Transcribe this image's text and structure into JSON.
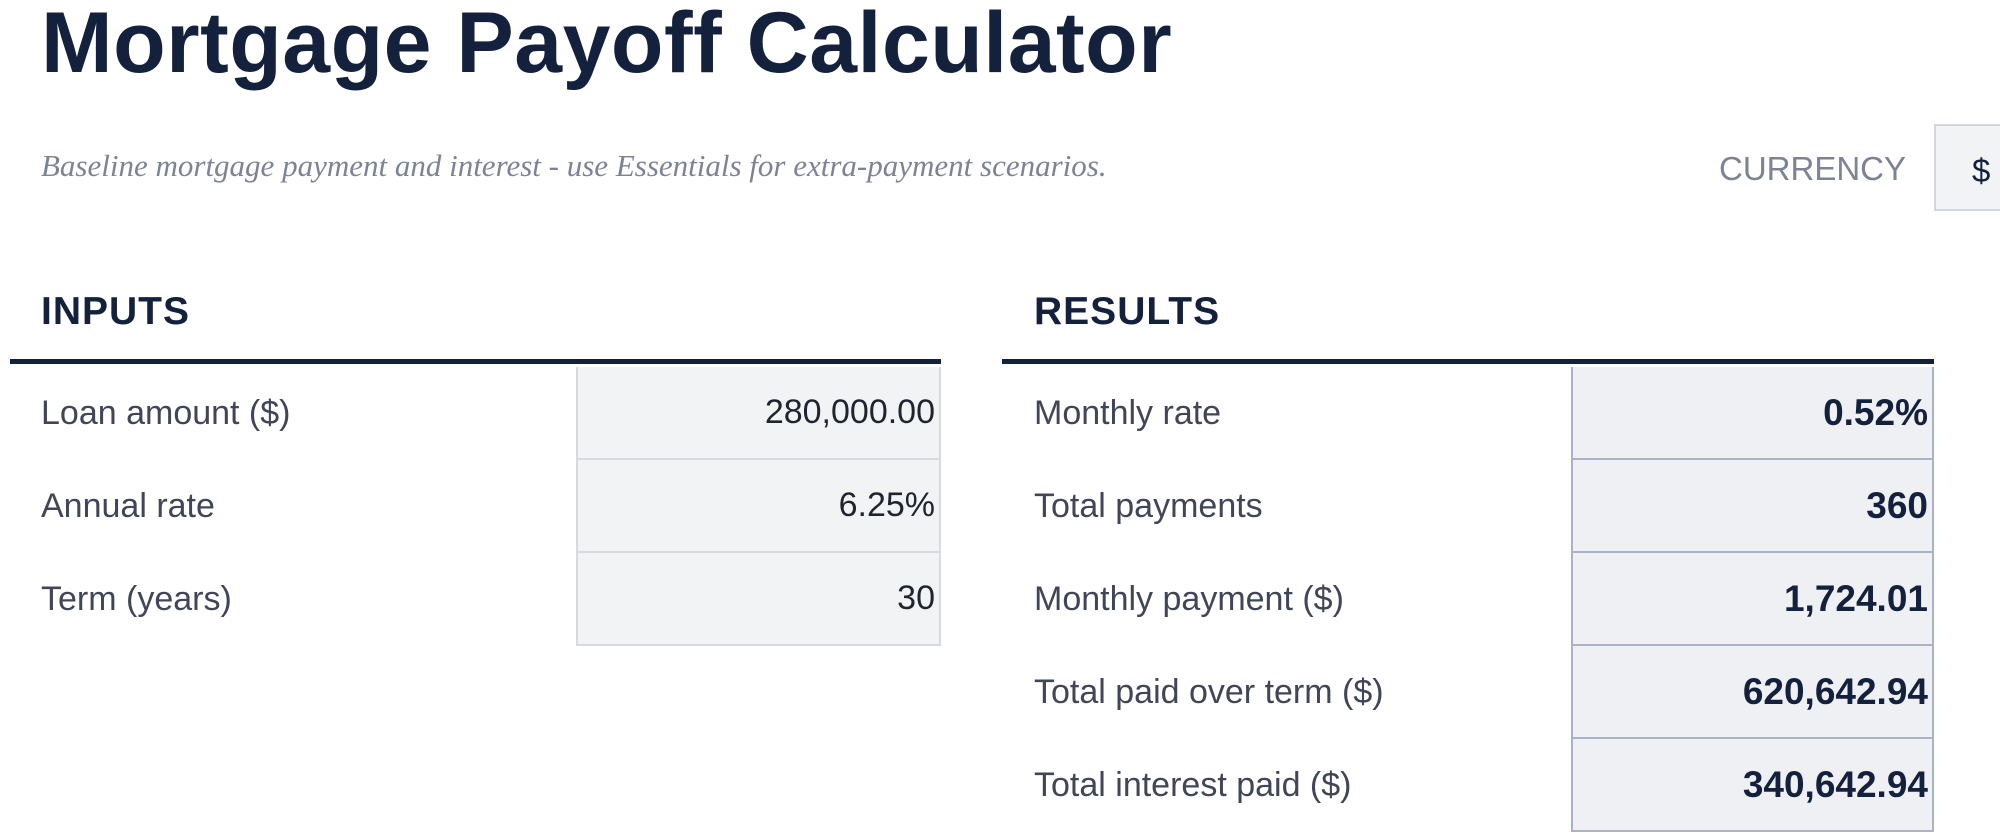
{
  "header": {
    "title": "Mortgage Payoff Calculator",
    "subtitle": "Baseline mortgage payment and interest - use Essentials for extra-payment scenarios.",
    "currency_label": "CURRENCY",
    "currency_value": "$"
  },
  "inputs": {
    "title": "INPUTS",
    "rows": [
      [
        "Loan amount ($)",
        "280,000.00"
      ],
      [
        "Annual rate",
        "6.25%"
      ],
      [
        "Term (years)",
        "30"
      ]
    ]
  },
  "results": {
    "title": "RESULTS",
    "rows": [
      [
        "Monthly rate",
        "0.52%"
      ],
      [
        "Total payments",
        "360"
      ],
      [
        "Monthly payment ($)",
        "1,724.01"
      ],
      [
        "Total paid over term ($)",
        "620,642.94"
      ],
      [
        "Total interest paid ($)",
        "340,642.94"
      ]
    ]
  }
}
